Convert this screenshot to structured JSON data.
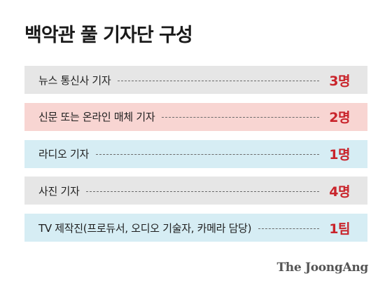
{
  "title": "백악관 풀 기자단 구성",
  "rows": [
    {
      "label": "뉴스 통신사 기자",
      "count": "3명",
      "bg": "#e6e6e6"
    },
    {
      "label": "신문 또는 온라인 매체 기자",
      "count": "2명",
      "bg": "#f8d5d2"
    },
    {
      "label": "라디오 기자",
      "count": "1명",
      "bg": "#d6edf4"
    },
    {
      "label": "사진 기자",
      "count": "4명",
      "bg": "#e6e6e6"
    },
    {
      "label": "TV 제작진(프로듀서, 오디오 기술자, 카메라 담당)",
      "count": "1팀",
      "bg": "#d6edf4"
    }
  ],
  "colors": {
    "accent": "#c9242b",
    "gray_row": "#e6e6e6",
    "pink_row": "#f8d5d2",
    "blue_row": "#d6edf4"
  },
  "source": "The JoongAng"
}
